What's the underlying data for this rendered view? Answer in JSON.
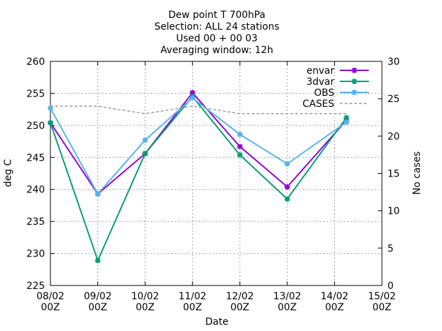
{
  "chart_data": {
    "type": "line",
    "title_lines": [
      "Dew point T 700hPa",
      "Selection: ALL      24 stations",
      "Used 00 + 00 03",
      "Averaging window: 12h"
    ],
    "xlabel": "Date",
    "ylabel": "deg C",
    "y2label": "No cases",
    "x_tick_labels": [
      {
        "day": "08/02",
        "hour": "00Z"
      },
      {
        "day": "09/02",
        "hour": "00Z"
      },
      {
        "day": "10/02",
        "hour": "00Z"
      },
      {
        "day": "11/02",
        "hour": "00Z"
      },
      {
        "day": "12/02",
        "hour": "00Z"
      },
      {
        "day": "13/02",
        "hour": "00Z"
      },
      {
        "day": "14/02",
        "hour": "00Z"
      },
      {
        "day": "15/02",
        "hour": "00Z"
      }
    ],
    "xlim": [
      "08/02 00Z",
      "15/02 00Z"
    ],
    "ylim": [
      225,
      260
    ],
    "y_ticks": [
      225,
      230,
      235,
      240,
      245,
      250,
      255,
      260
    ],
    "y2lim": [
      0,
      30
    ],
    "y2_ticks": [
      0,
      5,
      10,
      15,
      20,
      25,
      30
    ],
    "grid": true,
    "legend_position": "top-right",
    "series": [
      {
        "name": "envar",
        "color": "#9400d3",
        "axis": "left",
        "style": "line-points",
        "x": [
          "08/02 00Z",
          "09/02 00Z",
          "10/02 00Z",
          "11/02 00Z",
          "12/02 00Z",
          "13/02 00Z",
          "14/02 06Z"
        ],
        "y": [
          250.4,
          239.3,
          245.6,
          255.1,
          246.7,
          240.4,
          250.8
        ]
      },
      {
        "name": "3dvar",
        "color": "#009e73",
        "axis": "left",
        "style": "line-points",
        "x": [
          "08/02 00Z",
          "09/02 00Z",
          "10/02 00Z",
          "11/02 00Z",
          "12/02 00Z",
          "13/02 00Z",
          "14/02 06Z"
        ],
        "y": [
          250.4,
          228.9,
          245.6,
          254.5,
          245.4,
          238.5,
          251.2
        ]
      },
      {
        "name": "OBS",
        "color": "#56b4e9",
        "axis": "left",
        "style": "line-points",
        "x": [
          "08/02 00Z",
          "09/02 00Z",
          "10/02 00Z",
          "11/02 00Z",
          "12/02 00Z",
          "13/02 00Z",
          "14/02 06Z"
        ],
        "y": [
          252.7,
          239.3,
          247.7,
          254.3,
          248.6,
          244.0,
          250.5
        ]
      },
      {
        "name": "CASES",
        "color": "#999999",
        "axis": "right",
        "style": "dashed",
        "x": [
          "08/02 00Z",
          "08/02 12Z",
          "09/02 00Z",
          "09/02 12Z",
          "10/02 00Z",
          "10/02 12Z",
          "11/02 00Z",
          "11/02 12Z",
          "12/02 00Z",
          "12/02 12Z",
          "13/02 00Z",
          "13/02 12Z",
          "14/02 00Z",
          "14/02 06Z"
        ],
        "y": [
          24,
          24,
          24,
          23.5,
          23,
          23.5,
          24,
          23.5,
          23,
          23,
          23,
          23,
          23,
          23
        ]
      }
    ]
  }
}
